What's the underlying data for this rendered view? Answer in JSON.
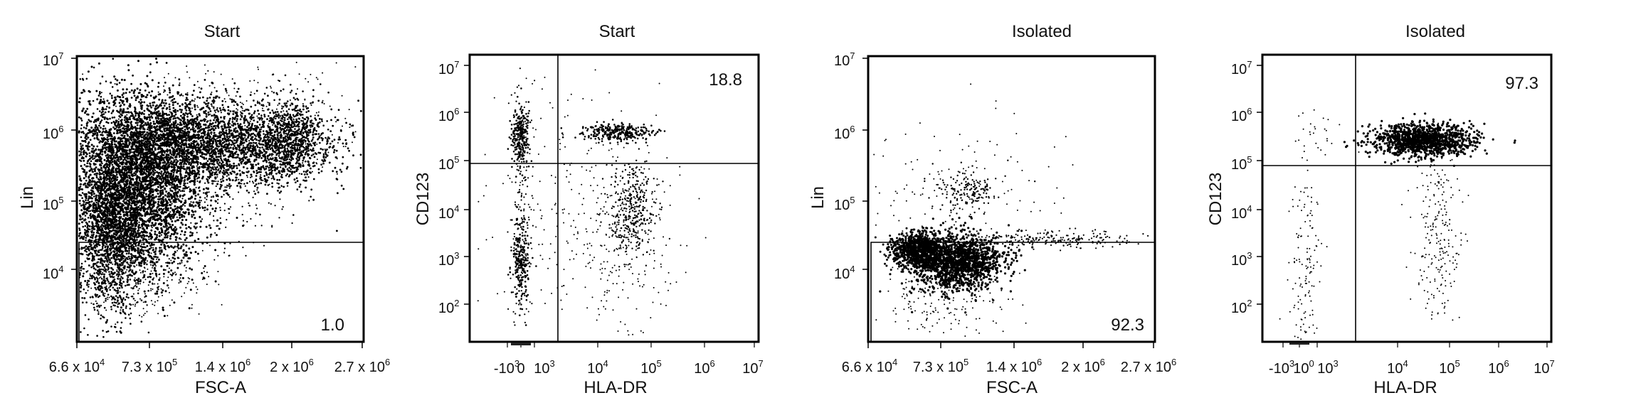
{
  "chart_data": [
    {
      "type": "scatter",
      "title": "Start",
      "xlabel": "FSC-A",
      "ylabel": "Lin",
      "x_scale": "linear",
      "y_scale": "log",
      "xlim": [
        66000,
        2700000
      ],
      "ylim": [
        1000,
        10000000
      ],
      "x_ticks": [
        "6.6 x 10^4",
        "7.3 x 10^5",
        "1.4 x 10^6",
        "2 x 10^6",
        "2.7 x 10^6"
      ],
      "y_ticks": [
        "10^4",
        "10^5",
        "10^6",
        "10^7"
      ],
      "gate_lines": {
        "horizontal": 25000
      },
      "gate_labels": [
        {
          "text": "1.0",
          "position": "bottom-right"
        }
      ],
      "populations": [
        {
          "x_center": 560000,
          "y_center": 150000,
          "n_events": "dense"
        },
        {
          "x_center": 1400000,
          "y_center": 600000,
          "n_events": "dense"
        }
      ]
    },
    {
      "type": "scatter",
      "title": "Start",
      "xlabel": "HLA-DR",
      "ylabel": "CD123",
      "x_scale": "biexponential",
      "y_scale": "log",
      "x_ticks": [
        "-10^3",
        "0",
        "10^3",
        "10^4",
        "10^5",
        "10^6",
        "10^7"
      ],
      "y_ticks": [
        "10^2",
        "10^3",
        "10^4",
        "10^5",
        "10^6",
        "10^7"
      ],
      "gate_lines": {
        "vertical": 2000,
        "horizontal": 80000
      },
      "gate_labels": [
        {
          "text": "18.8",
          "position": "top-right"
        }
      ],
      "populations": [
        {
          "x_center": 50,
          "y_center": 500000
        },
        {
          "x_center": 50,
          "y_center": 800
        },
        {
          "x_center": 40000,
          "y_center": 400000
        },
        {
          "x_center": 30000,
          "y_center": 10000
        }
      ]
    },
    {
      "type": "scatter",
      "title": "Isolated",
      "xlabel": "FSC-A",
      "ylabel": "Lin",
      "x_scale": "linear",
      "y_scale": "log",
      "xlim": [
        66000,
        2700000
      ],
      "ylim": [
        1000,
        10000000
      ],
      "x_ticks": [
        "6.6 x 10^4",
        "7.3 x 10^5",
        "1.4 x 10^6",
        "2 x 10^6",
        "2.7 x 10^6"
      ],
      "y_ticks": [
        "10^4",
        "10^5",
        "10^6",
        "10^7"
      ],
      "gate_lines": {
        "horizontal": 25000
      },
      "gate_labels": [
        {
          "text": "92.3",
          "position": "bottom-right"
        }
      ],
      "populations": [
        {
          "x_center": 700000,
          "y_center": 12000
        },
        {
          "x_center": 850000,
          "y_center": 130000
        }
      ]
    },
    {
      "type": "scatter",
      "title": "Isolated",
      "xlabel": "HLA-DR",
      "ylabel": "CD123",
      "x_scale": "biexponential",
      "y_scale": "log",
      "x_ticks": [
        "-10^3",
        "0",
        "10^3",
        "10^4",
        "10^5",
        "10^6",
        "10^7"
      ],
      "y_ticks": [
        "10^2",
        "10^3",
        "10^4",
        "10^5",
        "10^6",
        "10^7"
      ],
      "gate_lines": {
        "vertical": 2000,
        "horizontal": 90000
      },
      "gate_labels": [
        {
          "text": "97.3",
          "position": "top-right"
        }
      ],
      "populations": [
        {
          "x_center": 45000,
          "y_center": 250000
        }
      ]
    }
  ]
}
